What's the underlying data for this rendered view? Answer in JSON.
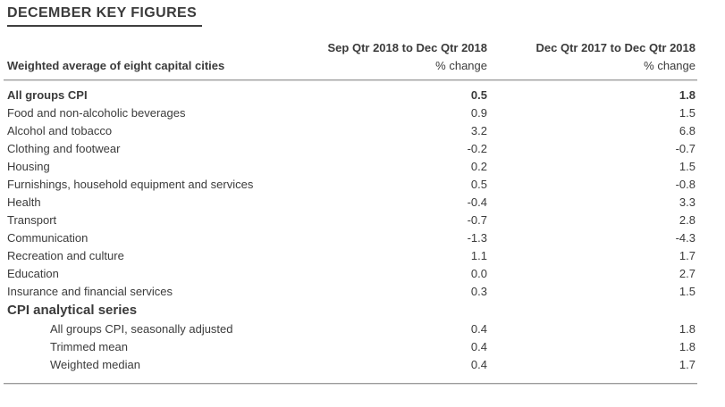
{
  "page": {
    "title": "DECEMBER KEY FIGURES"
  },
  "colors": {
    "text": "#3b3b3b",
    "rule_dark": "#9b9b9b",
    "rule_light": "#dcdcdc",
    "background": "#ffffff"
  },
  "table": {
    "stub_header": "Weighted average of eight capital cities",
    "columns": [
      {
        "period": "Sep Qtr 2018 to Dec Qtr 2018",
        "unit": "% change"
      },
      {
        "period": "Dec Qtr 2017 to Dec Qtr 2018",
        "unit": "% change"
      }
    ],
    "rows": [
      {
        "label": "All groups CPI",
        "values": [
          "0.5",
          "1.8"
        ]
      },
      {
        "label": "Food and non-alcoholic beverages",
        "values": [
          "0.9",
          "1.5"
        ]
      },
      {
        "label": "Alcohol and tobacco",
        "values": [
          "3.2",
          "6.8"
        ]
      },
      {
        "label": "Clothing and footwear",
        "values": [
          "-0.2",
          "-0.7"
        ]
      },
      {
        "label": "Housing",
        "values": [
          "0.2",
          "1.5"
        ]
      },
      {
        "label": "Furnishings, household equipment and services",
        "values": [
          "0.5",
          "-0.8"
        ]
      },
      {
        "label": "Health",
        "values": [
          "-0.4",
          "3.3"
        ]
      },
      {
        "label": "Transport",
        "values": [
          "-0.7",
          "2.8"
        ]
      },
      {
        "label": "Communication",
        "values": [
          "-1.3",
          "-4.3"
        ]
      },
      {
        "label": "Recreation and culture",
        "values": [
          "1.1",
          "1.7"
        ]
      },
      {
        "label": "Education",
        "values": [
          "0.0",
          "2.7"
        ]
      },
      {
        "label": "Insurance and financial services",
        "values": [
          "0.3",
          "1.5"
        ]
      },
      {
        "label": "CPI analytical series",
        "values": [
          "",
          ""
        ]
      },
      {
        "label": "All groups CPI, seasonally adjusted",
        "values": [
          "0.4",
          "1.8"
        ]
      },
      {
        "label": "Trimmed mean",
        "values": [
          "0.4",
          "1.8"
        ]
      },
      {
        "label": "Weighted median",
        "values": [
          "0.4",
          "1.7"
        ]
      }
    ]
  }
}
